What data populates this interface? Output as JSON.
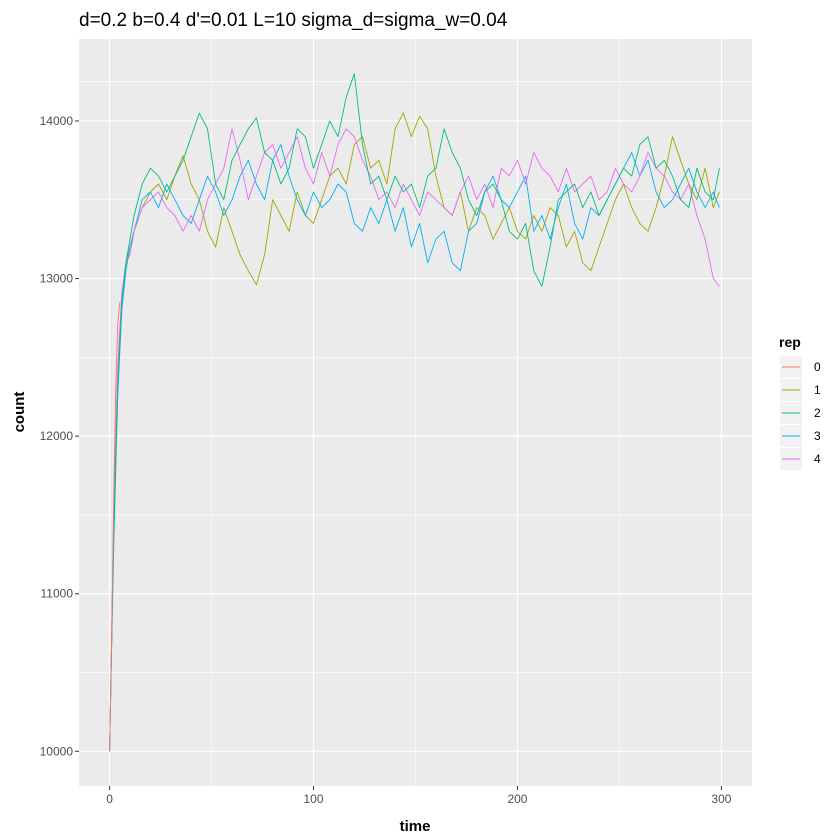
{
  "chart_data": {
    "type": "line",
    "title": "d=0.2 b=0.4 d'=0.01 L=10 sigma_d=sigma_w=0.04",
    "xlabel": "time",
    "ylabel": "count",
    "xlim": [
      -15,
      315
    ],
    "ylim": [
      9780,
      14520
    ],
    "xticks": [
      0,
      100,
      200,
      300
    ],
    "yticks": [
      10000,
      11000,
      12000,
      13000,
      14000
    ],
    "grid": true,
    "background": "#EBEBEB",
    "legend": {
      "title": "rep",
      "position": "right"
    },
    "series": [
      {
        "name": "0",
        "color": "#F8766D",
        "x": [
          0,
          1,
          2,
          3,
          4,
          5
        ],
        "values": [
          10000,
          10700,
          11600,
          12300,
          12700,
          12850
        ]
      },
      {
        "name": "1",
        "color": "#A3A500",
        "x": [
          0,
          2,
          4,
          6,
          8,
          10,
          12,
          16,
          20,
          24,
          28,
          32,
          36,
          40,
          44,
          48,
          52,
          56,
          60,
          64,
          68,
          72,
          76,
          80,
          84,
          88,
          92,
          96,
          100,
          104,
          108,
          112,
          116,
          120,
          124,
          128,
          132,
          136,
          140,
          144,
          148,
          152,
          156,
          160,
          164,
          168,
          172,
          176,
          180,
          184,
          188,
          192,
          196,
          200,
          204,
          208,
          212,
          216,
          220,
          224,
          228,
          232,
          236,
          240,
          244,
          248,
          252,
          256,
          260,
          264,
          268,
          272,
          276,
          280,
          284,
          288,
          292,
          296,
          299
        ],
        "values": [
          10000,
          11500,
          12400,
          12900,
          13100,
          13200,
          13300,
          13450,
          13550,
          13600,
          13500,
          13650,
          13780,
          13600,
          13500,
          13300,
          13200,
          13450,
          13300,
          13150,
          13050,
          12960,
          13150,
          13500,
          13400,
          13300,
          13550,
          13400,
          13350,
          13500,
          13650,
          13700,
          13600,
          13850,
          13900,
          13700,
          13750,
          13600,
          13950,
          14050,
          13900,
          14030,
          13950,
          13650,
          13450,
          13400,
          13550,
          13300,
          13450,
          13400,
          13250,
          13350,
          13450,
          13300,
          13250,
          13400,
          13300,
          13450,
          13400,
          13200,
          13300,
          13100,
          13050,
          13200,
          13350,
          13500,
          13600,
          13450,
          13350,
          13300,
          13450,
          13650,
          13900,
          13750,
          13600,
          13500,
          13700,
          13450,
          13550
        ]
      },
      {
        "name": "2",
        "color": "#00BF7D",
        "x": [
          0,
          2,
          4,
          6,
          8,
          10,
          12,
          16,
          20,
          24,
          28,
          32,
          36,
          40,
          44,
          48,
          52,
          56,
          60,
          64,
          68,
          72,
          76,
          80,
          84,
          88,
          92,
          96,
          100,
          104,
          108,
          112,
          116,
          120,
          124,
          128,
          132,
          136,
          140,
          144,
          148,
          152,
          156,
          160,
          164,
          168,
          172,
          176,
          180,
          184,
          188,
          192,
          196,
          200,
          204,
          208,
          212,
          216,
          220,
          224,
          228,
          232,
          236,
          240,
          244,
          248,
          252,
          256,
          260,
          264,
          268,
          272,
          276,
          280,
          284,
          288,
          292,
          296,
          299
        ],
        "values": [
          10000,
          11400,
          12300,
          12850,
          13100,
          13250,
          13400,
          13600,
          13700,
          13650,
          13550,
          13650,
          13750,
          13900,
          14050,
          13950,
          13600,
          13500,
          13750,
          13850,
          13950,
          14020,
          13800,
          13750,
          13600,
          13700,
          13950,
          13900,
          13700,
          13850,
          14000,
          13900,
          14150,
          14300,
          13850,
          13600,
          13650,
          13500,
          13650,
          13550,
          13600,
          13450,
          13650,
          13700,
          13950,
          13800,
          13700,
          13500,
          13400,
          13550,
          13600,
          13500,
          13300,
          13250,
          13350,
          13050,
          12950,
          13200,
          13500,
          13550,
          13600,
          13450,
          13550,
          13400,
          13500,
          13600,
          13700,
          13650,
          13850,
          13900,
          13700,
          13750,
          13650,
          13500,
          13450,
          13700,
          13550,
          13500,
          13700
        ]
      },
      {
        "name": "3",
        "color": "#00B0F6",
        "x": [
          0,
          2,
          4,
          6,
          8,
          10,
          12,
          16,
          20,
          24,
          28,
          32,
          36,
          40,
          44,
          48,
          52,
          56,
          60,
          64,
          68,
          72,
          76,
          80,
          84,
          88,
          92,
          96,
          100,
          104,
          108,
          112,
          116,
          120,
          124,
          128,
          132,
          136,
          140,
          144,
          148,
          152,
          156,
          160,
          164,
          168,
          172,
          176,
          180,
          184,
          188,
          192,
          196,
          200,
          204,
          208,
          212,
          216,
          220,
          224,
          228,
          232,
          236,
          240,
          244,
          248,
          252,
          256,
          260,
          264,
          268,
          272,
          276,
          280,
          284,
          288,
          292,
          296,
          299
        ],
        "values": [
          10000,
          11300,
          12250,
          12800,
          13050,
          13200,
          13300,
          13500,
          13550,
          13450,
          13600,
          13500,
          13400,
          13350,
          13500,
          13650,
          13550,
          13400,
          13500,
          13650,
          13750,
          13600,
          13500,
          13750,
          13850,
          13650,
          13500,
          13400,
          13550,
          13450,
          13500,
          13600,
          13550,
          13350,
          13300,
          13450,
          13350,
          13500,
          13300,
          13450,
          13200,
          13350,
          13100,
          13250,
          13300,
          13100,
          13050,
          13300,
          13350,
          13550,
          13650,
          13500,
          13450,
          13550,
          13650,
          13300,
          13400,
          13250,
          13450,
          13600,
          13350,
          13250,
          13450,
          13400,
          13500,
          13600,
          13700,
          13800,
          13650,
          13750,
          13550,
          13450,
          13500,
          13600,
          13700,
          13550,
          13450,
          13550,
          13450
        ]
      },
      {
        "name": "4",
        "color": "#E76BF3",
        "x": [
          0,
          2,
          4,
          6,
          8,
          10,
          12,
          16,
          20,
          24,
          28,
          32,
          36,
          40,
          44,
          48,
          52,
          56,
          60,
          64,
          68,
          72,
          76,
          80,
          84,
          88,
          92,
          96,
          100,
          104,
          108,
          112,
          116,
          120,
          124,
          128,
          132,
          136,
          140,
          144,
          148,
          152,
          156,
          160,
          164,
          168,
          172,
          176,
          180,
          184,
          188,
          192,
          196,
          200,
          204,
          208,
          212,
          216,
          220,
          224,
          228,
          232,
          236,
          240,
          244,
          248,
          252,
          256,
          260,
          264,
          268,
          272,
          276,
          280,
          284,
          288,
          292,
          296,
          299
        ],
        "values": [
          10000,
          11500,
          12450,
          12900,
          13100,
          13150,
          13300,
          13450,
          13500,
          13550,
          13450,
          13400,
          13300,
          13400,
          13300,
          13500,
          13600,
          13700,
          13950,
          13750,
          13500,
          13650,
          13800,
          13850,
          13700,
          13800,
          13900,
          13700,
          13600,
          13800,
          13650,
          13850,
          13950,
          13900,
          13750,
          13650,
          13500,
          13550,
          13450,
          13600,
          13500,
          13400,
          13550,
          13500,
          13450,
          13400,
          13550,
          13650,
          13500,
          13600,
          13450,
          13700,
          13650,
          13750,
          13600,
          13800,
          13700,
          13650,
          13550,
          13700,
          13550,
          13600,
          13650,
          13500,
          13550,
          13700,
          13600,
          13550,
          13650,
          13800,
          13700,
          13650,
          13550,
          13500,
          13600,
          13400,
          13250,
          13000,
          12950
        ]
      }
    ]
  }
}
